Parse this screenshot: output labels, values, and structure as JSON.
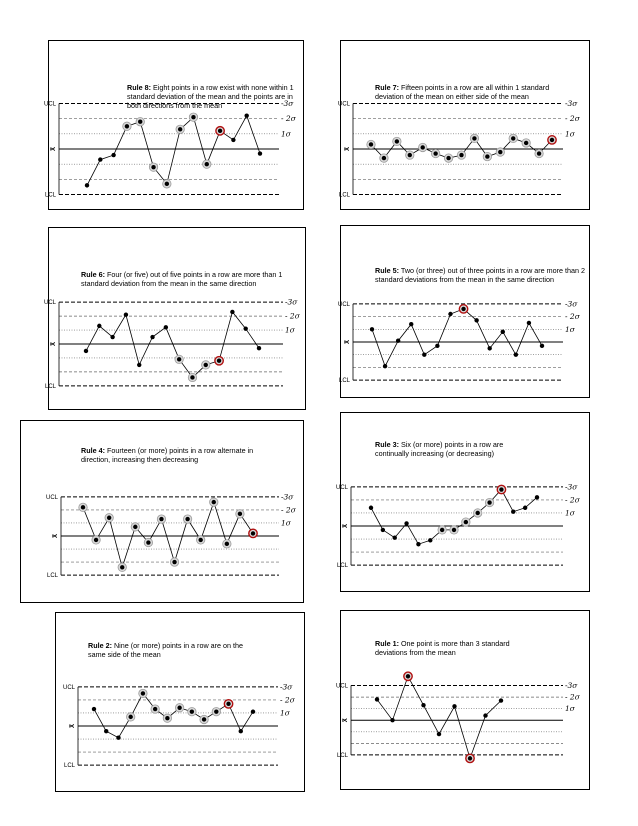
{
  "labels": {
    "ucl": "UCL",
    "lcl": "LCL",
    "mean": "X̄"
  },
  "sigma_labels": [
    "-3σ",
    "- 2σ",
    "1σ"
  ],
  "colors": {
    "highlight": "#b01010",
    "halo": "#d8d8d8",
    "line": "#000000",
    "grid": "#666666"
  },
  "chart_data": [
    {
      "type": "line",
      "rule": "Rule 8:",
      "text": "Eight points in a row exist with none within 1 standard deviation of the mean and the points are in both directions from the mean",
      "ylim": [
        -3.3,
        3.3
      ],
      "values": [
        -2.4,
        -0.7,
        -0.4,
        1.5,
        1.8,
        -1.2,
        -2.3,
        1.3,
        2.1,
        -1.0,
        1.2,
        0.6,
        2.2,
        -0.3
      ],
      "halo": [
        3,
        4,
        5,
        6,
        7,
        8,
        9,
        10
      ],
      "red": [
        10
      ]
    },
    {
      "type": "line",
      "rule": "Rule 7:",
      "text": "Fifteen points in a row are all within 1 standard deviation of the mean on either side of the mean",
      "ylim": [
        -3.3,
        3.3
      ],
      "values": [
        0.3,
        -0.6,
        0.5,
        -0.4,
        0.1,
        -0.3,
        -0.6,
        -0.4,
        0.7,
        -0.5,
        -0.2,
        0.7,
        0.4,
        -0.3,
        0.6
      ],
      "halo": [
        0,
        1,
        2,
        3,
        4,
        5,
        6,
        7,
        8,
        9,
        10,
        11,
        12,
        13,
        14
      ],
      "red": [
        14
      ]
    },
    {
      "type": "line",
      "rule": "Rule 6:",
      "text": "Four (or five) out of five points in a row are more than 1 standard deviation from the mean in the same direction",
      "ylim": [
        -3.3,
        3.3
      ],
      "values": [
        -0.5,
        1.3,
        0.5,
        2.1,
        -1.5,
        0.5,
        1.2,
        -1.1,
        -2.4,
        -1.5,
        -1.2,
        2.3,
        1.1,
        -0.3
      ],
      "halo": [
        7,
        8,
        9,
        10
      ],
      "red": [
        10
      ]
    },
    {
      "type": "line",
      "rule": "Rule 5:",
      "text": "Two (or three) out of three points in a row are more than 2 standard deviations from the mean in the same direction",
      "ylim": [
        -3.3,
        3.3
      ],
      "values": [
        1.0,
        -1.9,
        0.1,
        1.4,
        -1.0,
        -0.3,
        2.2,
        2.6,
        1.7,
        -0.5,
        0.8,
        -1.0,
        1.5,
        -0.3
      ],
      "halo": [
        7
      ],
      "red": [
        7
      ]
    },
    {
      "type": "line",
      "rule": "Rule 4:",
      "text": "Fourteen (or more) points in a row alternate in direction, increasing then decreasing",
      "ylim": [
        -3.3,
        3.3
      ],
      "values": [
        2.2,
        -0.3,
        1.4,
        -2.4,
        0.7,
        -0.5,
        1.3,
        -2.0,
        1.3,
        -0.3,
        2.6,
        -0.6,
        1.7,
        0.2
      ],
      "halo": [
        0,
        1,
        2,
        3,
        4,
        5,
        6,
        7,
        8,
        9,
        10,
        11,
        12,
        13
      ],
      "red": [
        13
      ]
    },
    {
      "type": "line",
      "rule": "Rule 3:",
      "text": "Six (or more) points in a row are continually increasing (or decreasing)",
      "ylim": [
        -3.3,
        3.3
      ],
      "values": [
        1.4,
        -0.3,
        -0.9,
        0.2,
        -1.4,
        -1.1,
        -0.3,
        -0.3,
        0.3,
        1.0,
        1.8,
        2.8,
        1.1,
        1.4,
        2.2
      ],
      "halo": [
        6,
        7,
        8,
        9,
        10,
        11
      ],
      "red": [
        11
      ]
    },
    {
      "type": "line",
      "rule": "Rule 2:",
      "text": "Nine (or more) points in a row are on the same side of the mean",
      "ylim": [
        -3.3,
        3.3
      ],
      "values": [
        1.3,
        -0.4,
        -0.9,
        0.7,
        2.5,
        1.3,
        0.6,
        1.4,
        1.1,
        0.5,
        1.1,
        1.7,
        -0.4,
        1.1
      ],
      "halo": [
        3,
        4,
        5,
        6,
        7,
        8,
        9,
        10,
        11
      ],
      "red": [
        11
      ]
    },
    {
      "type": "line",
      "rule": "Rule 1:",
      "text": "One point is more than 3 standard deviations from the mean",
      "ylim": [
        -3.7,
        4.0
      ],
      "values": [
        1.8,
        0.0,
        3.8,
        1.3,
        -1.2,
        1.2,
        -3.3,
        0.4,
        1.7
      ],
      "halo": [
        2,
        6
      ],
      "red": [
        2,
        6
      ]
    }
  ]
}
